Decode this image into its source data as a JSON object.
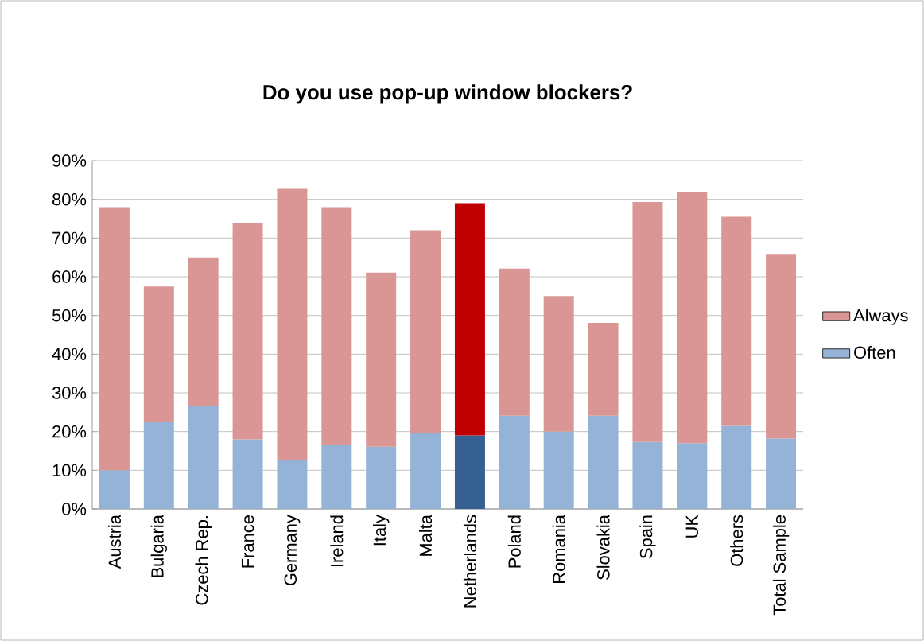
{
  "chart_data": {
    "type": "bar",
    "title": "Do you use pop-up window blockers?",
    "stacked": true,
    "categories": [
      "Austria",
      "Bulgaria",
      "Czech Rep.",
      "France",
      "Germany",
      "Ireland",
      "Italy",
      "Malta",
      "Netherlands",
      "Poland",
      "Romania",
      "Slovakia",
      "Spain",
      "UK",
      "Others",
      "Total Sample"
    ],
    "series": [
      {
        "name": "Often",
        "color": "#95b3d7",
        "colors": [
          "#95b3d7",
          "#95b3d7",
          "#95b3d7",
          "#95b3d7",
          "#95b3d7",
          "#95b3d7",
          "#95b3d7",
          "#95b3d7",
          "#376092",
          "#95b3d7",
          "#95b3d7",
          "#95b3d7",
          "#95b3d7",
          "#95b3d7",
          "#95b3d7",
          "#95b3d7"
        ],
        "values": [
          10,
          22.5,
          26.5,
          18,
          12.7,
          16.6,
          16.1,
          19.7,
          19,
          24.1,
          20,
          24.1,
          17.3,
          17,
          21.5,
          18.2
        ]
      },
      {
        "name": "Always",
        "color": "#d99694",
        "colors": [
          "#d99694",
          "#d99694",
          "#d99694",
          "#d99694",
          "#d99694",
          "#d99694",
          "#d99694",
          "#d99694",
          "#c00000",
          "#d99694",
          "#d99694",
          "#d99694",
          "#d99694",
          "#d99694",
          "#d99694",
          "#d99694"
        ],
        "values": [
          68,
          35,
          38.5,
          56,
          70,
          61.4,
          45,
          52.3,
          60,
          38,
          35,
          24,
          62,
          65,
          54,
          47.5
        ]
      }
    ],
    "ylim": [
      0,
      90
    ],
    "yticks": [
      {
        "value": 0,
        "label": "0%"
      },
      {
        "value": 10,
        "label": "10%"
      },
      {
        "value": 20,
        "label": "20%"
      },
      {
        "value": 30,
        "label": "30%"
      },
      {
        "value": 40,
        "label": "40%"
      },
      {
        "value": 50,
        "label": "50%"
      },
      {
        "value": 60,
        "label": "60%"
      },
      {
        "value": 70,
        "label": "70%"
      },
      {
        "value": 80,
        "label": "80%"
      },
      {
        "value": 90,
        "label": "90%"
      }
    ],
    "grid": "y",
    "legend": "right"
  }
}
